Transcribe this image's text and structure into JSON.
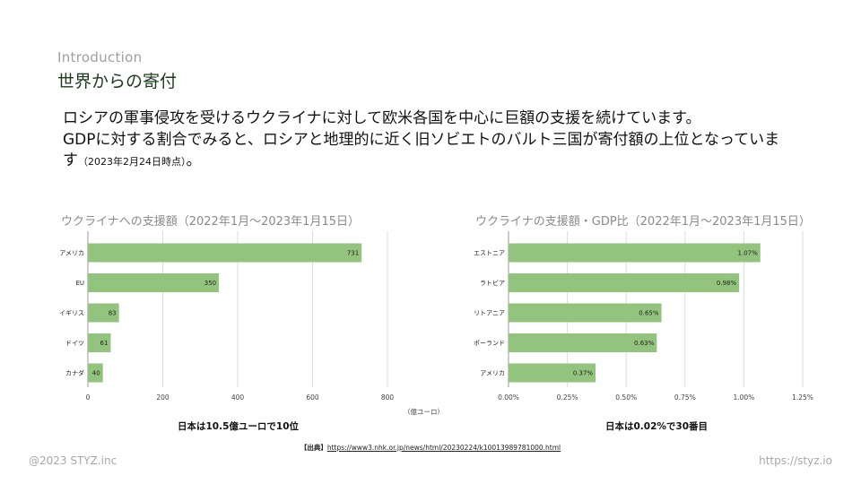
{
  "header": {
    "section": "Introduction",
    "title": "世界からの寄付"
  },
  "lead": {
    "line1": "ロシアの軍事侵攻を受けるウクライナに対して欧米各国を中心に巨額の支援を続けています。",
    "line2": "GDPに対する割合でみると、ロシアと地理的に近く旧ソビエトのバルト三国が寄付額の上位となっていま",
    "line3": "す",
    "note": "（2023年2月24日時点）",
    "end": "。"
  },
  "chart_data": [
    {
      "type": "bar",
      "orientation": "horizontal",
      "title": "ウクライナへの支援額（2022年1月～2023年1月15日）",
      "categories": [
        "アメリカ",
        "EU",
        "イギリス",
        "ドイツ",
        "カナダ"
      ],
      "values": [
        731,
        350,
        83,
        61,
        40
      ],
      "value_labels": [
        "731",
        "350",
        "83",
        "61",
        "40"
      ],
      "xlim": [
        0,
        800
      ],
      "xticks": [
        0,
        200,
        400,
        600,
        800
      ],
      "xtick_labels": [
        "0",
        "200",
        "400",
        "600",
        "800"
      ],
      "xlabel": "（億ユーロ）",
      "grid": true,
      "color": "#93c47d",
      "caption": "日本は10.5億ユーロで10位"
    },
    {
      "type": "bar",
      "orientation": "horizontal",
      "title": "ウクライナの支援額・GDP比（2022年1月～2023年1月15日）",
      "categories": [
        "エストニア",
        "ラトビア",
        "リトアニア",
        "ポーランド",
        "アメリカ"
      ],
      "values": [
        1.07,
        0.98,
        0.65,
        0.63,
        0.37
      ],
      "value_labels": [
        "1.07%",
        "0.98%",
        "0.65%",
        "0.63%",
        "0.37%"
      ],
      "xlim": [
        0,
        1.25
      ],
      "xticks": [
        0,
        0.25,
        0.5,
        0.75,
        1.0,
        1.25
      ],
      "xtick_labels": [
        "0.00%",
        "0.25%",
        "0.50%",
        "0.75%",
        "1.00%",
        "1.25%"
      ],
      "grid": true,
      "color": "#93c47d",
      "caption": "日本は0.02%で30番目"
    }
  ],
  "source": {
    "label": "【出典】",
    "url": "https://www3.nhk.or.jp/news/html/20230224/k10013989781000.html"
  },
  "footer": {
    "copyright": "@2023 STYZ.inc",
    "site": "https://styz.io"
  }
}
